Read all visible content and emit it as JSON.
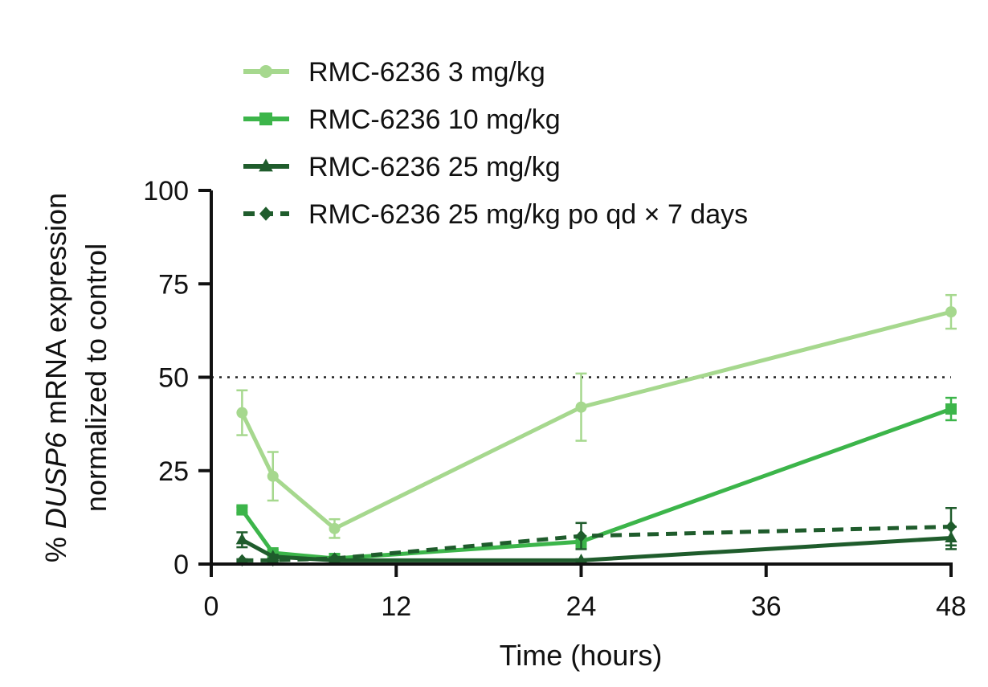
{
  "chart_data": {
    "type": "line",
    "xlabel": "Time (hours)",
    "ylabel_prefix": "% ",
    "ylabel_italic": "DUSP6",
    "ylabel_rest": " mRNA expression",
    "ylabel_line2": "normalized to control",
    "xlim": [
      0,
      48
    ],
    "ylim": [
      0,
      100
    ],
    "xticks": [
      0,
      12,
      24,
      36,
      48
    ],
    "yticks": [
      0,
      25,
      50,
      75,
      100
    ],
    "reference_line": {
      "y": 50,
      "style": "dotted"
    },
    "grid": false,
    "legend_position": "top",
    "series": [
      {
        "name": "RMC-6236 3 mg/kg",
        "color": "#a6d88e",
        "marker": "circle",
        "dash": "solid",
        "x": [
          2,
          4,
          8,
          24,
          48
        ],
        "y": [
          40.5,
          23.5,
          9.5,
          42,
          67.5
        ],
        "err": [
          6,
          6.5,
          2.5,
          9,
          4.5
        ]
      },
      {
        "name": "RMC-6236 10 mg/kg",
        "color": "#3cb54a",
        "marker": "square",
        "dash": "solid",
        "x": [
          2,
          4,
          8,
          24,
          48
        ],
        "y": [
          14.5,
          3,
          1.5,
          6,
          41.5
        ],
        "err": [
          0.8,
          0.8,
          0.5,
          1.5,
          3
        ]
      },
      {
        "name": "RMC-6236 25 mg/kg",
        "color": "#1f5c2c",
        "marker": "triangle",
        "dash": "solid",
        "x": [
          2,
          4,
          8,
          24,
          48
        ],
        "y": [
          6.5,
          2,
          1,
          1,
          7
        ],
        "err": [
          2,
          0.5,
          0.3,
          0.3,
          3
        ]
      },
      {
        "name": "RMC-6236 25 mg/kg po qd × 7 days",
        "color": "#1f5c2c",
        "marker": "diamond",
        "dash": "dashed",
        "x": [
          2,
          4,
          8,
          24,
          48
        ],
        "y": [
          1,
          1,
          1.5,
          7.5,
          10
        ],
        "err": [
          0.3,
          0.3,
          0.3,
          3.5,
          5
        ]
      }
    ]
  }
}
